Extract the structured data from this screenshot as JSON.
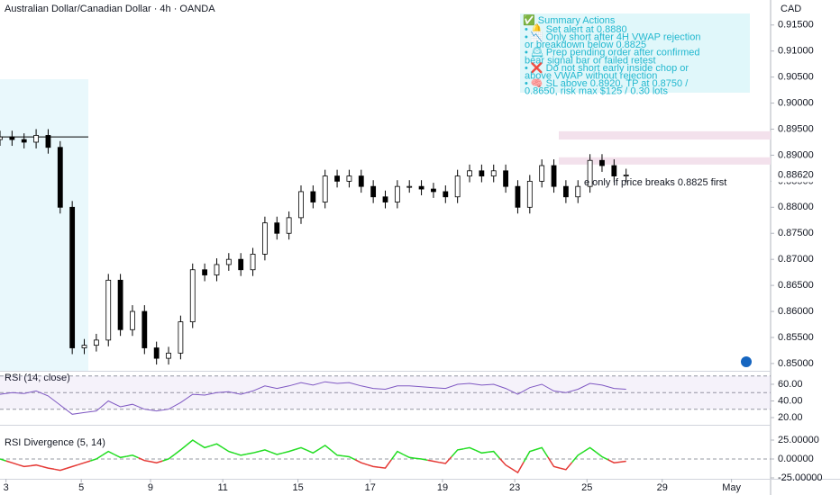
{
  "chart_data": [
    {
      "type": "candlestick",
      "title": "Australian Dollar/Canadian Dollar · 4h · OANDA",
      "y_label": "CAD",
      "x": [
        0,
        2,
        4,
        6,
        8,
        10,
        12,
        14,
        16,
        18,
        20,
        22,
        24,
        26,
        28,
        30,
        32,
        34,
        36,
        38,
        40,
        42,
        44,
        46,
        48,
        50,
        52,
        54,
        56,
        58,
        60,
        62,
        64,
        66,
        68,
        70,
        72,
        74,
        76,
        78,
        80,
        82,
        84,
        86,
        88,
        90,
        92,
        94,
        96,
        98,
        100,
        102,
        104
      ],
      "open": [
        0.893,
        0.8935,
        0.893,
        0.8925,
        0.8938,
        0.8915,
        0.88,
        0.853,
        0.8535,
        0.8545,
        0.866,
        0.8565,
        0.86,
        0.853,
        0.851,
        0.852,
        0.858,
        0.868,
        0.867,
        0.869,
        0.87,
        0.868,
        0.871,
        0.877,
        0.875,
        0.878,
        0.883,
        0.881,
        0.886,
        0.885,
        0.886,
        0.884,
        0.882,
        0.881,
        0.884,
        0.884,
        0.8835,
        0.883,
        0.882,
        0.886,
        0.887,
        0.886,
        0.887,
        0.884,
        0.88,
        0.885,
        0.888,
        0.884,
        0.882,
        0.884,
        0.889,
        0.888,
        0.886
      ],
      "high": [
        0.8947,
        0.8947,
        0.8942,
        0.895,
        0.895,
        0.8927,
        0.8812,
        0.8547,
        0.8557,
        0.8672,
        0.8672,
        0.8612,
        0.8612,
        0.8542,
        0.8532,
        0.8592,
        0.8692,
        0.8692,
        0.8702,
        0.8712,
        0.8712,
        0.8722,
        0.8782,
        0.8782,
        0.8792,
        0.8842,
        0.8842,
        0.8872,
        0.8872,
        0.8872,
        0.8872,
        0.8852,
        0.8832,
        0.8852,
        0.8852,
        0.8852,
        0.8847,
        0.8842,
        0.8872,
        0.8882,
        0.8882,
        0.8882,
        0.8882,
        0.8852,
        0.8862,
        0.8892,
        0.8892,
        0.8852,
        0.8852,
        0.8902,
        0.8902,
        0.8892,
        0.8874
      ],
      "low": [
        0.8918,
        0.8918,
        0.8913,
        0.8913,
        0.8903,
        0.8788,
        0.8518,
        0.8518,
        0.8523,
        0.8533,
        0.8553,
        0.8553,
        0.8518,
        0.8498,
        0.8498,
        0.8508,
        0.8568,
        0.8658,
        0.8658,
        0.8678,
        0.8668,
        0.8668,
        0.8698,
        0.8738,
        0.8738,
        0.8768,
        0.8798,
        0.8798,
        0.8838,
        0.8838,
        0.8828,
        0.8808,
        0.8798,
        0.8798,
        0.8828,
        0.8823,
        0.8818,
        0.8808,
        0.8808,
        0.8848,
        0.8848,
        0.8848,
        0.8828,
        0.8788,
        0.8788,
        0.8838,
        0.8828,
        0.8808,
        0.8808,
        0.8828,
        0.8868,
        0.8848,
        0.8848
      ],
      "close": [
        0.8935,
        0.893,
        0.8925,
        0.8938,
        0.8915,
        0.88,
        0.853,
        0.8535,
        0.8545,
        0.866,
        0.8565,
        0.86,
        0.853,
        0.851,
        0.852,
        0.858,
        0.868,
        0.867,
        0.869,
        0.87,
        0.868,
        0.871,
        0.877,
        0.875,
        0.878,
        0.883,
        0.881,
        0.886,
        0.885,
        0.886,
        0.884,
        0.882,
        0.881,
        0.884,
        0.884,
        0.8835,
        0.883,
        0.882,
        0.886,
        0.887,
        0.886,
        0.887,
        0.884,
        0.88,
        0.885,
        0.888,
        0.884,
        0.882,
        0.884,
        0.889,
        0.888,
        0.886,
        0.8862
      ],
      "up_color": "#ffffff",
      "down_color": "#000000",
      "xlim": [
        0,
        128
      ],
      "ylim": [
        0.8486,
        0.9198
      ],
      "yticks": [
        {
          "value": 0.85,
          "label": "0.85000"
        },
        {
          "value": 0.855,
          "label": "0.85500"
        },
        {
          "value": 0.86,
          "label": "0.86000"
        },
        {
          "value": 0.865,
          "label": "0.86500"
        },
        {
          "value": 0.87,
          "label": "0.87000"
        },
        {
          "value": 0.875,
          "label": "0.87500"
        },
        {
          "value": 0.88,
          "label": "0.88000"
        },
        {
          "value": 0.885,
          "label": "0.88500"
        },
        {
          "value": 0.89,
          "label": "0.89000"
        },
        {
          "value": 0.895,
          "label": "0.89500"
        },
        {
          "value": 0.9,
          "label": "0.90000"
        },
        {
          "value": 0.905,
          "label": "0.90500"
        },
        {
          "value": 0.91,
          "label": "0.91000"
        },
        {
          "value": 0.915,
          "label": "0.91500"
        }
      ],
      "last_price": {
        "value": 0.8862,
        "label": "0.88620"
      },
      "hline": 0.8935,
      "zones": [
        [
          0.893,
          0.8946
        ],
        [
          0.8882,
          0.8896
        ]
      ],
      "note": "e only if price breaks 0.8825 first",
      "annotation": {
        "title": "✅ Summary Actions",
        "lines": [
          "• 🔔 Set alert at 0.8880",
          "• 📉 Only short after 4H VWAP rejection",
          "or breakdown below 0.8825",
          "• 🕰 Prep pending order after confirmed",
          "bear signal bar or failed retest",
          "• ❌ Do not short early inside chop or",
          "above VWAP without rejection",
          "• 🧠 SL above 0.8920, TP at 0.8750 /",
          "0.8650, risk max $125 / 0.30 lots"
        ]
      }
    },
    {
      "type": "line",
      "title": "RSI (14, close)",
      "x": [
        0,
        2,
        4,
        6,
        8,
        10,
        12,
        14,
        16,
        18,
        20,
        22,
        24,
        26,
        28,
        30,
        32,
        34,
        36,
        38,
        40,
        42,
        44,
        46,
        48,
        50,
        52,
        54,
        56,
        58,
        60,
        62,
        64,
        66,
        68,
        70,
        72,
        74,
        76,
        78,
        80,
        82,
        84,
        86,
        88,
        90,
        92,
        94,
        96,
        98,
        100,
        102,
        104
      ],
      "values": [
        48,
        50,
        49,
        52,
        46,
        35,
        24,
        26,
        28,
        40,
        33,
        36,
        30,
        28,
        30,
        38,
        48,
        47,
        50,
        51,
        48,
        52,
        58,
        55,
        58,
        62,
        59,
        63,
        61,
        62,
        58,
        55,
        54,
        58,
        58,
        57,
        56,
        55,
        60,
        61,
        59,
        60,
        55,
        48,
        56,
        60,
        52,
        50,
        54,
        61,
        59,
        55,
        54
      ],
      "color": "#7e57c2",
      "xlim": [
        0,
        128
      ],
      "ylim": [
        13.5,
        75.1
      ],
      "yticks": [
        {
          "value": 20,
          "label": "20.00"
        },
        {
          "value": 40,
          "label": "40.00"
        },
        {
          "value": 60,
          "label": "60.00"
        }
      ],
      "levels": [
        70,
        50,
        30
      ]
    },
    {
      "type": "oscillator",
      "title": "RSI Divergence (5, 14)",
      "x": [
        0,
        2,
        4,
        6,
        8,
        10,
        12,
        14,
        16,
        18,
        20,
        22,
        24,
        26,
        28,
        30,
        32,
        34,
        36,
        38,
        40,
        42,
        44,
        46,
        48,
        50,
        52,
        54,
        56,
        58,
        60,
        62,
        64,
        66,
        68,
        70,
        72,
        74,
        76,
        78,
        80,
        82,
        84,
        86,
        88,
        90,
        92,
        94,
        96,
        98,
        100,
        102,
        104
      ],
      "values": [
        0,
        -5,
        -10,
        -8,
        -12,
        -15,
        -10,
        -5,
        0,
        10,
        2,
        5,
        -2,
        -5,
        0,
        12,
        25,
        15,
        20,
        10,
        5,
        8,
        12,
        6,
        10,
        15,
        8,
        18,
        5,
        3,
        -5,
        -10,
        -12,
        10,
        2,
        0,
        -3,
        -6,
        12,
        15,
        8,
        10,
        -8,
        -18,
        10,
        15,
        -10,
        -14,
        5,
        15,
        3,
        -5,
        -3
      ],
      "color": "#e53935",
      "color_positive": "#22dd22",
      "xlim": [
        0,
        128
      ],
      "ylim": [
        -26.2,
        40.5
      ],
      "yticks": [
        {
          "value": -25,
          "label": "-25.00000"
        },
        {
          "value": 0,
          "label": "0.00000"
        },
        {
          "value": 25,
          "label": "25.00000"
        }
      ],
      "levels": [
        0
      ],
      "xticks": [
        {
          "value": 1,
          "label": "3"
        },
        {
          "value": 13.5,
          "label": "5"
        },
        {
          "value": 25,
          "label": "9"
        },
        {
          "value": 37,
          "label": "11"
        },
        {
          "value": 49.5,
          "label": "15"
        },
        {
          "value": 61.5,
          "label": "17"
        },
        {
          "value": 73.5,
          "label": "19"
        },
        {
          "value": 85.5,
          "label": "23"
        },
        {
          "value": 97.5,
          "label": "25"
        },
        {
          "value": 110,
          "label": "29"
        },
        {
          "value": 121.5,
          "label": "May"
        }
      ]
    }
  ]
}
